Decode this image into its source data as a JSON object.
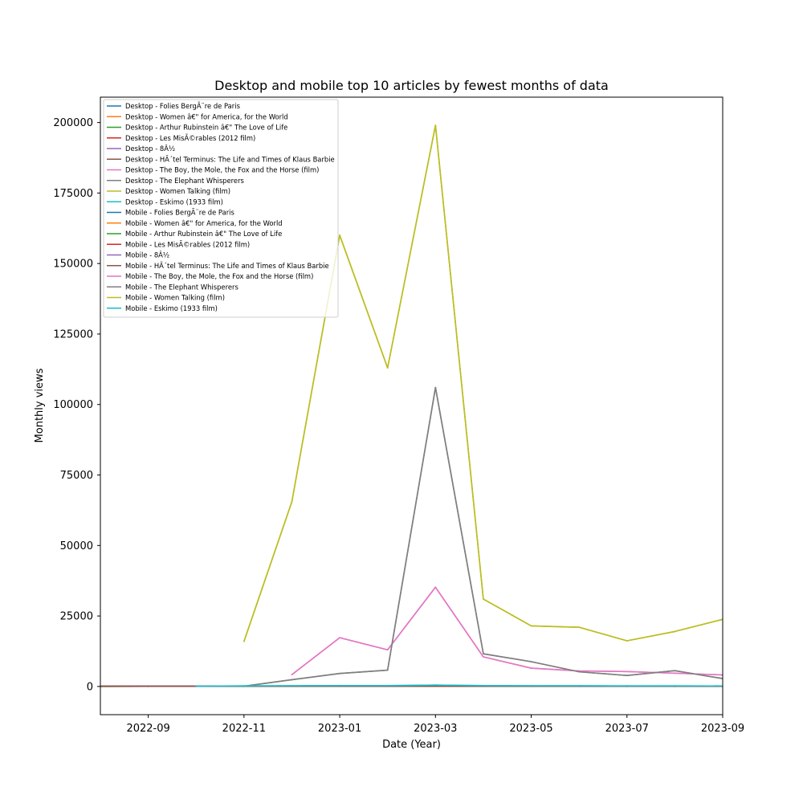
{
  "chart_data": {
    "type": "line",
    "title": "Desktop and mobile top 10 articles by fewest months of data",
    "xlabel": "Date (Year)",
    "ylabel": "Monthly views",
    "xlim": [
      "2022-08",
      "2023-09"
    ],
    "ylim": [
      -10000,
      209000
    ],
    "xticks": [
      "2022-09",
      "2022-11",
      "2023-01",
      "2023-03",
      "2023-05",
      "2023-07",
      "2023-09"
    ],
    "yticks": [
      0,
      25000,
      50000,
      75000,
      100000,
      125000,
      150000,
      175000,
      200000
    ],
    "grid": false,
    "legend_position": "upper-left",
    "series": [
      {
        "name": "Desktop - Folies BergÃ¨re de Paris",
        "color": "#1f77b4",
        "x": [
          "2022-08",
          "2022-09",
          "2022-10",
          "2022-11",
          "2022-12",
          "2023-01",
          "2023-02",
          "2023-03",
          "2023-04",
          "2023-05",
          "2023-06",
          "2023-07",
          "2023-08",
          "2023-09"
        ],
        "y": [
          60,
          55,
          70,
          80,
          90,
          100,
          120,
          150,
          110,
          95,
          90,
          85,
          80,
          75
        ]
      },
      {
        "name": "Desktop - Women â€\" for America, for the World",
        "color": "#ff7f0e",
        "x": [
          "2022-08",
          "2022-09",
          "2022-10",
          "2022-11",
          "2022-12",
          "2023-01",
          "2023-02",
          "2023-03",
          "2023-04",
          "2023-05",
          "2023-06",
          "2023-07",
          "2023-08",
          "2023-09"
        ],
        "y": [
          40,
          45,
          50,
          60,
          70,
          90,
          120,
          300,
          150,
          100,
          80,
          70,
          60,
          55
        ]
      },
      {
        "name": "Desktop - Arthur Rubinstein â€\" The Love of Life",
        "color": "#2ca02c",
        "x": [
          "2022-08",
          "2022-09",
          "2022-10",
          "2022-11",
          "2022-12",
          "2023-01",
          "2023-02",
          "2023-03",
          "2023-04",
          "2023-05",
          "2023-06",
          "2023-07",
          "2023-08",
          "2023-09"
        ],
        "y": [
          30,
          35,
          40,
          45,
          50,
          60,
          70,
          90,
          60,
          50,
          45,
          40,
          40,
          35
        ]
      },
      {
        "name": "Desktop - Les MisÃ©rables (2012 film)",
        "color": "#d62728",
        "x": [
          "2022-08",
          "2022-09",
          "2022-10",
          "2022-11",
          "2022-12",
          "2023-01",
          "2023-02",
          "2023-03",
          "2023-04",
          "2023-05",
          "2023-06",
          "2023-07",
          "2023-08",
          "2023-09"
        ],
        "y": [
          120,
          110,
          100,
          120,
          150,
          140,
          130,
          200,
          150,
          120,
          110,
          100,
          100,
          90
        ]
      },
      {
        "name": "Desktop - 8Â½",
        "color": "#9467bd",
        "x": [
          "2022-08",
          "2022-09",
          "2022-10",
          "2022-11",
          "2022-12",
          "2023-01",
          "2023-02",
          "2023-03",
          "2023-04",
          "2023-05",
          "2023-06",
          "2023-07",
          "2023-08",
          "2023-09"
        ],
        "y": [
          80,
          85,
          90,
          95,
          100,
          110,
          120,
          180,
          130,
          110,
          100,
          95,
          90,
          85
        ]
      },
      {
        "name": "Desktop - HÃ´tel Terminus: The Life and Times of Klaus Barbie",
        "color": "#8c564b",
        "x": [
          "2022-08",
          "2022-09",
          "2022-10",
          "2022-11",
          "2022-12",
          "2023-01",
          "2023-02",
          "2023-03",
          "2023-04",
          "2023-05",
          "2023-06",
          "2023-07",
          "2023-08",
          "2023-09"
        ],
        "y": [
          50,
          55,
          60,
          60,
          65,
          70,
          75,
          90,
          70,
          65,
          60,
          55,
          55,
          50
        ]
      },
      {
        "name": "Desktop - The Boy, the Mole, the Fox and the Horse (film)",
        "color": "#e377c2",
        "x": [
          "2022-12",
          "2023-01",
          "2023-02",
          "2023-03",
          "2023-04",
          "2023-05",
          "2023-06",
          "2023-07",
          "2023-08",
          "2023-09"
        ],
        "y": [
          4200,
          17300,
          13000,
          35200,
          10500,
          6500,
          5500,
          5300,
          4700,
          4100
        ]
      },
      {
        "name": "Desktop - The Elephant Whisperers",
        "color": "#7f7f7f",
        "x": [
          "2022-11",
          "2022-12",
          "2023-01",
          "2023-02",
          "2023-03",
          "2023-04",
          "2023-05",
          "2023-06",
          "2023-07",
          "2023-08",
          "2023-09"
        ],
        "y": [
          100,
          2400,
          4600,
          5800,
          106000,
          11600,
          8800,
          5200,
          3900,
          5600,
          2800
        ]
      },
      {
        "name": "Desktop - Women Talking (film)",
        "color": "#bcbd22",
        "x": [
          "2022-11",
          "2022-12",
          "2023-01",
          "2023-02",
          "2023-03",
          "2023-04",
          "2023-05",
          "2023-06",
          "2023-07",
          "2023-08",
          "2023-09"
        ],
        "y": [
          16000,
          65500,
          160000,
          113000,
          199000,
          31000,
          21500,
          21000,
          16200,
          19500,
          23800
        ]
      },
      {
        "name": "Desktop - Eskimo (1933 film)",
        "color": "#17becf",
        "x": [
          "2022-10",
          "2022-11",
          "2022-12",
          "2023-01",
          "2023-02",
          "2023-03",
          "2023-04",
          "2023-05",
          "2023-06",
          "2023-07",
          "2023-08",
          "2023-09"
        ],
        "y": [
          100,
          200,
          250,
          300,
          300,
          500,
          300,
          250,
          220,
          200,
          200,
          180
        ]
      },
      {
        "name": "Mobile - Folies BergÃ¨re de Paris",
        "color": "#1f77b4",
        "x": [
          "2022-08",
          "2022-09",
          "2022-10",
          "2022-11",
          "2022-12",
          "2023-01",
          "2023-02",
          "2023-03",
          "2023-04",
          "2023-05",
          "2023-06",
          "2023-07",
          "2023-08",
          "2023-09"
        ],
        "y": [
          60,
          55,
          70,
          80,
          90,
          100,
          120,
          150,
          110,
          95,
          90,
          85,
          80,
          75
        ]
      },
      {
        "name": "Mobile - Women â€\" for America, for the World",
        "color": "#ff7f0e",
        "x": [
          "2022-08",
          "2022-09",
          "2022-10",
          "2022-11",
          "2022-12",
          "2023-01",
          "2023-02",
          "2023-03",
          "2023-04",
          "2023-05",
          "2023-06",
          "2023-07",
          "2023-08",
          "2023-09"
        ],
        "y": [
          40,
          45,
          50,
          60,
          70,
          90,
          120,
          300,
          150,
          100,
          80,
          70,
          60,
          55
        ]
      },
      {
        "name": "Mobile - Arthur Rubinstein â€\" The Love of Life",
        "color": "#2ca02c",
        "x": [
          "2022-08",
          "2022-09",
          "2022-10",
          "2022-11",
          "2022-12",
          "2023-01",
          "2023-02",
          "2023-03",
          "2023-04",
          "2023-05",
          "2023-06",
          "2023-07",
          "2023-08",
          "2023-09"
        ],
        "y": [
          30,
          35,
          40,
          45,
          50,
          60,
          70,
          90,
          60,
          50,
          45,
          40,
          40,
          35
        ]
      },
      {
        "name": "Mobile - Les MisÃ©rables (2012 film)",
        "color": "#d62728",
        "x": [
          "2022-08",
          "2022-09",
          "2022-10",
          "2022-11",
          "2022-12",
          "2023-01",
          "2023-02",
          "2023-03",
          "2023-04",
          "2023-05",
          "2023-06",
          "2023-07",
          "2023-08",
          "2023-09"
        ],
        "y": [
          120,
          110,
          100,
          120,
          150,
          140,
          130,
          200,
          150,
          120,
          110,
          100,
          100,
          90
        ]
      },
      {
        "name": "Mobile - 8Â½",
        "color": "#9467bd",
        "x": [
          "2022-08",
          "2022-09",
          "2022-10",
          "2022-11",
          "2022-12",
          "2023-01",
          "2023-02",
          "2023-03",
          "2023-04",
          "2023-05",
          "2023-06",
          "2023-07",
          "2023-08",
          "2023-09"
        ],
        "y": [
          80,
          85,
          90,
          95,
          100,
          110,
          120,
          180,
          130,
          110,
          100,
          95,
          90,
          85
        ]
      },
      {
        "name": "Mobile - HÃ´tel Terminus: The Life and Times of Klaus Barbie",
        "color": "#8c564b",
        "x": [
          "2022-08",
          "2022-09",
          "2022-10",
          "2022-11",
          "2022-12",
          "2023-01",
          "2023-02",
          "2023-03",
          "2023-04",
          "2023-05",
          "2023-06",
          "2023-07",
          "2023-08",
          "2023-09"
        ],
        "y": [
          50,
          55,
          60,
          60,
          65,
          70,
          75,
          90,
          70,
          65,
          60,
          55,
          55,
          50
        ]
      },
      {
        "name": "Mobile - The Boy, the Mole, the Fox and the Horse (film)",
        "color": "#e377c2",
        "x": [
          "2022-12",
          "2023-01",
          "2023-02",
          "2023-03",
          "2023-04",
          "2023-05",
          "2023-06",
          "2023-07",
          "2023-08",
          "2023-09"
        ],
        "y": [
          4200,
          17300,
          13000,
          35200,
          10500,
          6500,
          5500,
          5300,
          4700,
          4100
        ]
      },
      {
        "name": "Mobile - The Elephant Whisperers",
        "color": "#7f7f7f",
        "x": [
          "2022-11",
          "2022-12",
          "2023-01",
          "2023-02",
          "2023-03",
          "2023-04",
          "2023-05",
          "2023-06",
          "2023-07",
          "2023-08",
          "2023-09"
        ],
        "y": [
          100,
          2400,
          4600,
          5800,
          106000,
          11600,
          8800,
          5200,
          3900,
          5600,
          2800
        ]
      },
      {
        "name": "Mobile - Women Talking (film)",
        "color": "#bcbd22",
        "x": [
          "2022-11",
          "2022-12",
          "2023-01",
          "2023-02",
          "2023-03",
          "2023-04",
          "2023-05",
          "2023-06",
          "2023-07",
          "2023-08",
          "2023-09"
        ],
        "y": [
          16000,
          65500,
          160000,
          113000,
          199000,
          31000,
          21500,
          21000,
          16200,
          19500,
          23800
        ]
      },
      {
        "name": "Mobile - Eskimo (1933 film)",
        "color": "#17becf",
        "x": [
          "2022-10",
          "2022-11",
          "2022-12",
          "2023-01",
          "2023-02",
          "2023-03",
          "2023-04",
          "2023-05",
          "2023-06",
          "2023-07",
          "2023-08",
          "2023-09"
        ],
        "y": [
          100,
          200,
          250,
          300,
          300,
          500,
          300,
          250,
          220,
          200,
          200,
          180
        ]
      }
    ]
  }
}
